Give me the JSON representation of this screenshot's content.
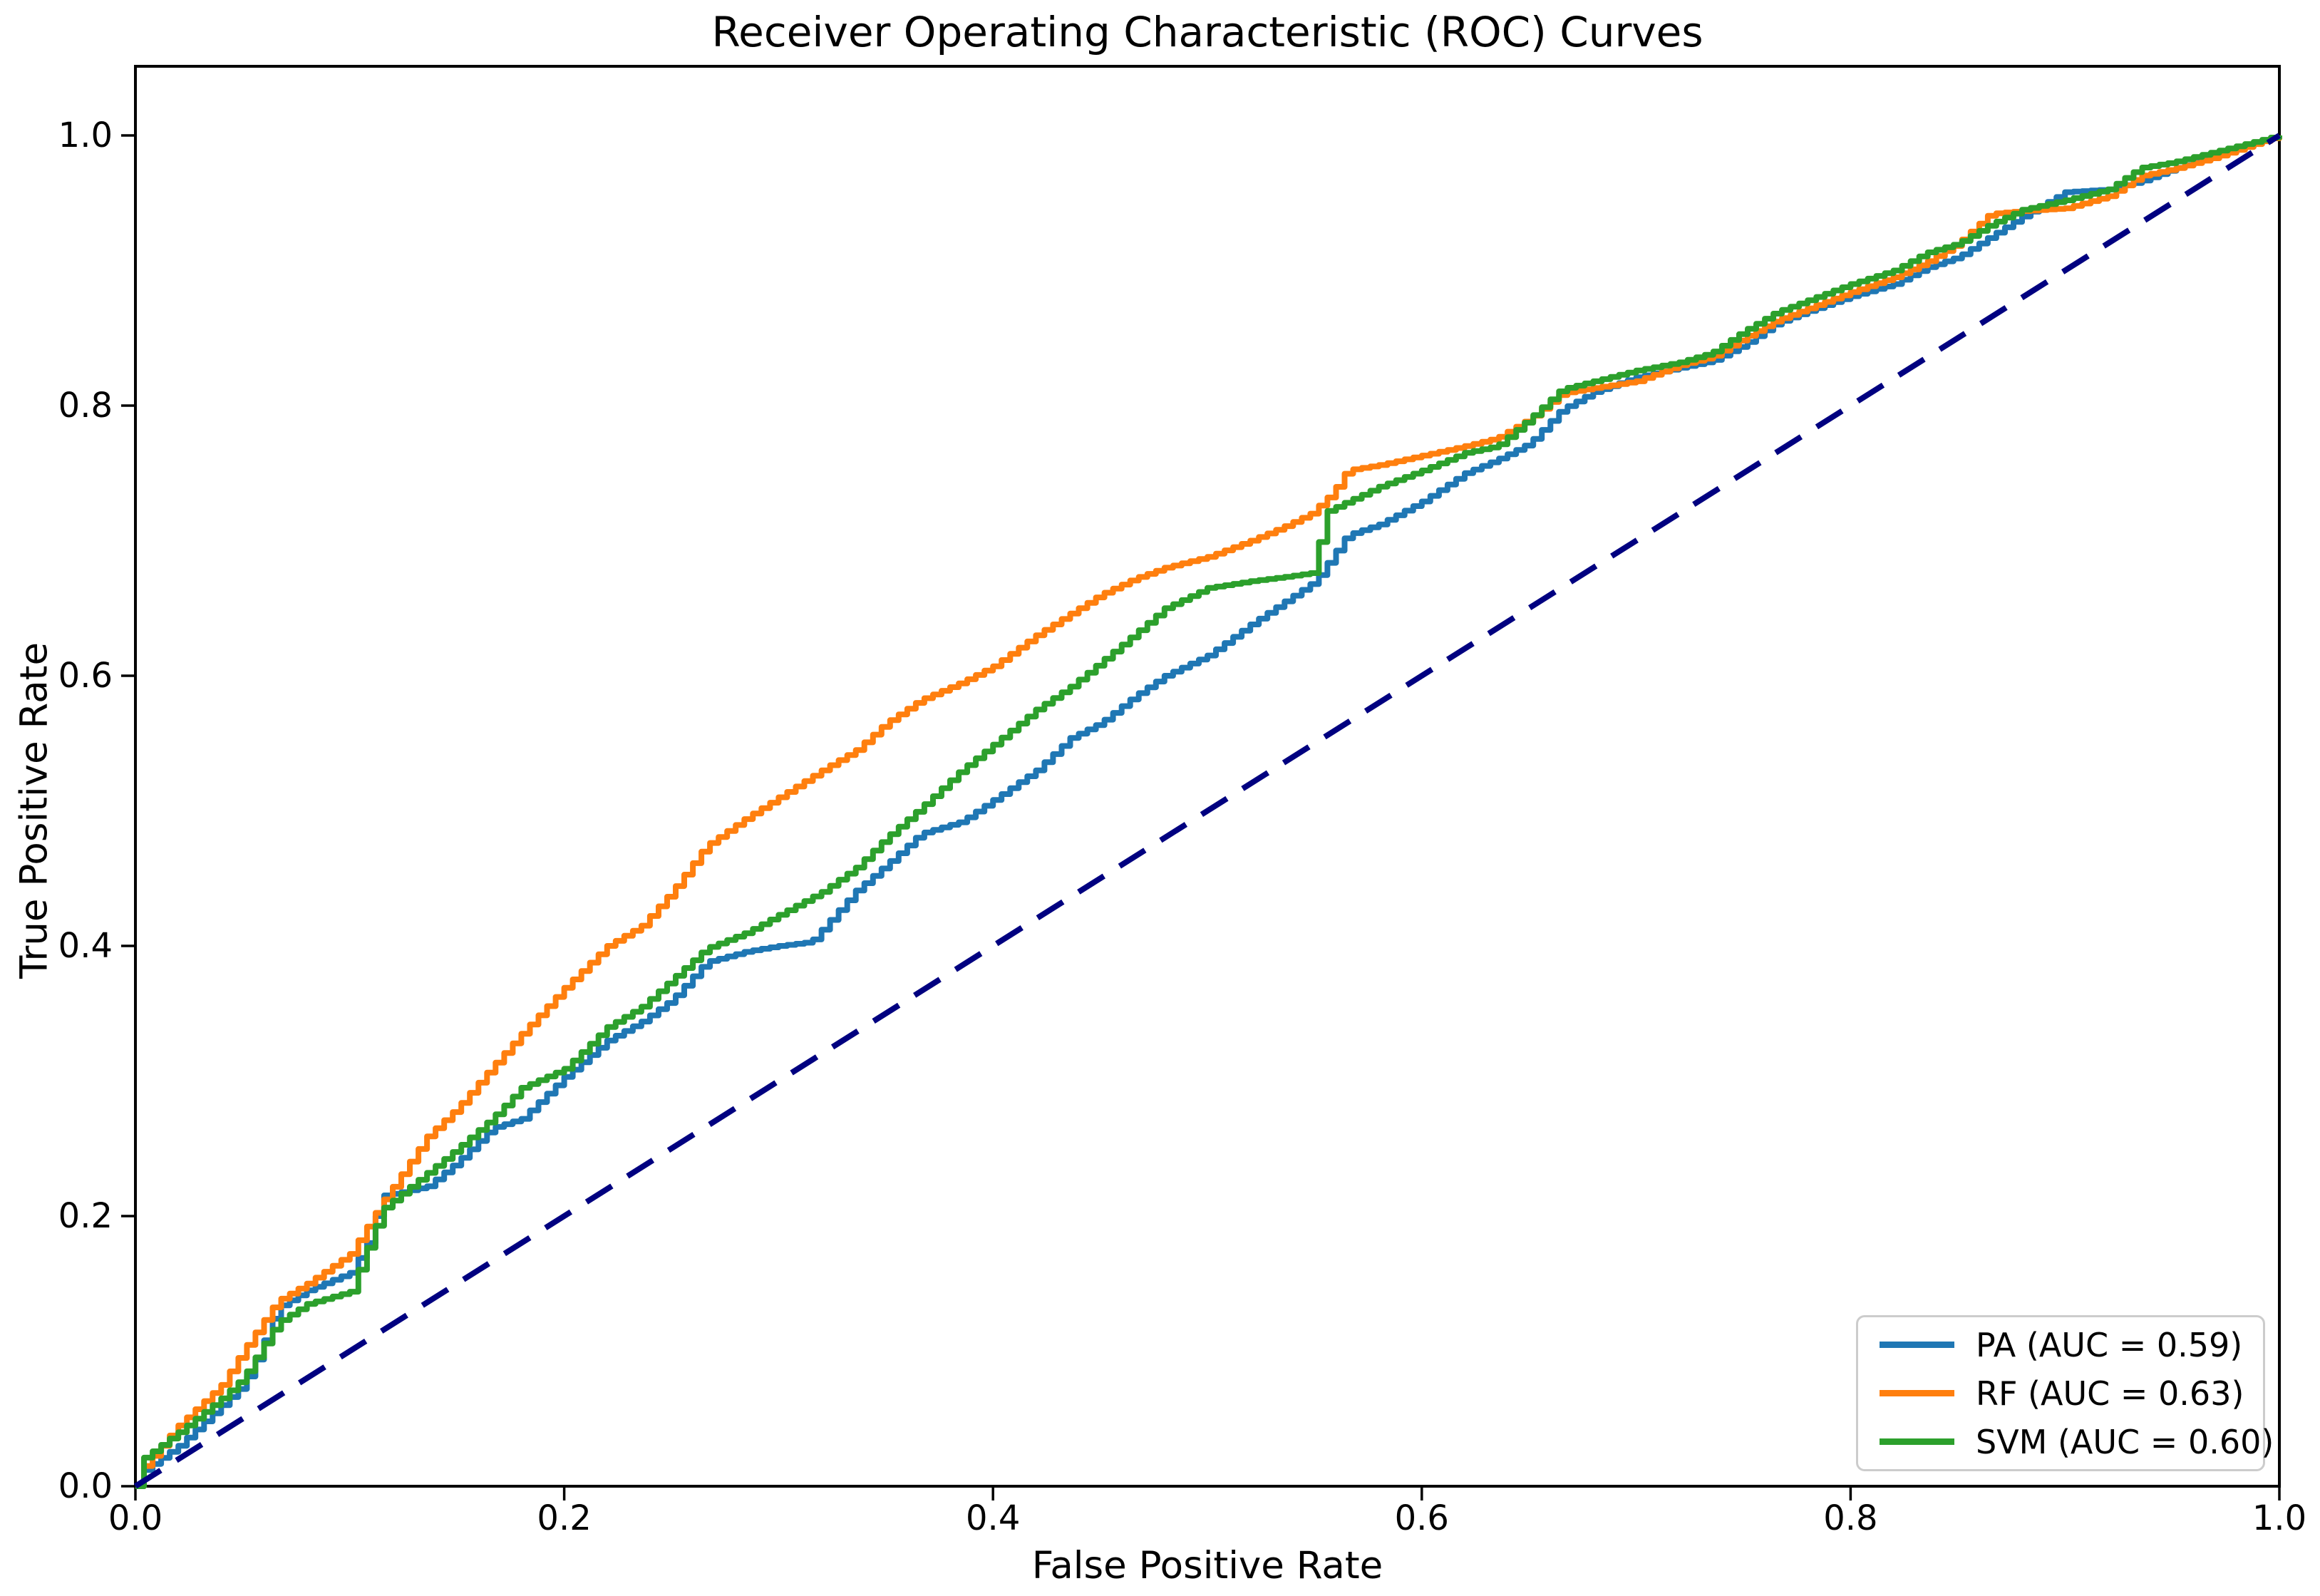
{
  "chart_data": {
    "type": "line",
    "title": "Receiver Operating Characteristic (ROC) Curves",
    "xlabel": "False Positive Rate",
    "ylabel": "True Positive Rate",
    "xlim": [
      0,
      1.0
    ],
    "ylim": [
      0,
      1.05
    ],
    "x_ticks": [
      "0.0",
      "0.2",
      "0.4",
      "0.6",
      "0.8",
      "1.0"
    ],
    "y_ticks": [
      "0.0",
      "0.2",
      "0.4",
      "0.6",
      "0.8",
      "1.0"
    ],
    "grid": false,
    "legend_position": "lower right",
    "series": [
      {
        "name": "PA (AUC = 0.59)",
        "auc": 0.59,
        "color": "#1f77b4",
        "style": "step",
        "legend": true,
        "points": [
          [
            0,
            0
          ],
          [
            0.004,
            0.012
          ],
          [
            0.02,
            0.03
          ],
          [
            0.04,
            0.06
          ],
          [
            0.05,
            0.075
          ],
          [
            0.058,
            0.1
          ],
          [
            0.066,
            0.132
          ],
          [
            0.08,
            0.145
          ],
          [
            0.1,
            0.158
          ],
          [
            0.108,
            0.18
          ],
          [
            0.115,
            0.215
          ],
          [
            0.125,
            0.218
          ],
          [
            0.136,
            0.222
          ],
          [
            0.15,
            0.24
          ],
          [
            0.166,
            0.265
          ],
          [
            0.18,
            0.272
          ],
          [
            0.2,
            0.303
          ],
          [
            0.22,
            0.33
          ],
          [
            0.236,
            0.344
          ],
          [
            0.25,
            0.36
          ],
          [
            0.266,
            0.388
          ],
          [
            0.285,
            0.396
          ],
          [
            0.3,
            0.4
          ],
          [
            0.315,
            0.403
          ],
          [
            0.336,
            0.441
          ],
          [
            0.35,
            0.46
          ],
          [
            0.366,
            0.483
          ],
          [
            0.385,
            0.492
          ],
          [
            0.4,
            0.508
          ],
          [
            0.42,
            0.53
          ],
          [
            0.436,
            0.554
          ],
          [
            0.45,
            0.565
          ],
          [
            0.466,
            0.585
          ],
          [
            0.48,
            0.6
          ],
          [
            0.5,
            0.615
          ],
          [
            0.52,
            0.638
          ],
          [
            0.535,
            0.654
          ],
          [
            0.55,
            0.67
          ],
          [
            0.565,
            0.704
          ],
          [
            0.58,
            0.712
          ],
          [
            0.6,
            0.729
          ],
          [
            0.62,
            0.75
          ],
          [
            0.635,
            0.76
          ],
          [
            0.65,
            0.772
          ],
          [
            0.665,
            0.797
          ],
          [
            0.68,
            0.81
          ],
          [
            0.7,
            0.821
          ],
          [
            0.72,
            0.828
          ],
          [
            0.735,
            0.833
          ],
          [
            0.75,
            0.845
          ],
          [
            0.765,
            0.861
          ],
          [
            0.78,
            0.87
          ],
          [
            0.8,
            0.881
          ],
          [
            0.82,
            0.89
          ],
          [
            0.835,
            0.902
          ],
          [
            0.85,
            0.91
          ],
          [
            0.865,
            0.925
          ],
          [
            0.88,
            0.94
          ],
          [
            0.9,
            0.958
          ],
          [
            0.92,
            0.96
          ],
          [
            0.935,
            0.966
          ],
          [
            0.95,
            0.975
          ],
          [
            0.97,
            0.985
          ],
          [
            1,
            1
          ]
        ]
      },
      {
        "name": "RF (AUC = 0.63)",
        "auc": 0.63,
        "color": "#ff7f0e",
        "style": "step",
        "legend": true,
        "points": [
          [
            0,
            0
          ],
          [
            0.004,
            0.015
          ],
          [
            0.02,
            0.045
          ],
          [
            0.04,
            0.075
          ],
          [
            0.05,
            0.1
          ],
          [
            0.066,
            0.137
          ],
          [
            0.08,
            0.15
          ],
          [
            0.1,
            0.172
          ],
          [
            0.115,
            0.21
          ],
          [
            0.136,
            0.259
          ],
          [
            0.15,
            0.28
          ],
          [
            0.166,
            0.31
          ],
          [
            0.18,
            0.335
          ],
          [
            0.2,
            0.369
          ],
          [
            0.22,
            0.4
          ],
          [
            0.236,
            0.415
          ],
          [
            0.25,
            0.44
          ],
          [
            0.266,
            0.474
          ],
          [
            0.285,
            0.495
          ],
          [
            0.3,
            0.51
          ],
          [
            0.32,
            0.53
          ],
          [
            0.336,
            0.545
          ],
          [
            0.35,
            0.565
          ],
          [
            0.366,
            0.582
          ],
          [
            0.385,
            0.595
          ],
          [
            0.4,
            0.607
          ],
          [
            0.42,
            0.63
          ],
          [
            0.436,
            0.646
          ],
          [
            0.45,
            0.66
          ],
          [
            0.466,
            0.672
          ],
          [
            0.48,
            0.68
          ],
          [
            0.5,
            0.688
          ],
          [
            0.52,
            0.7
          ],
          [
            0.535,
            0.71
          ],
          [
            0.548,
            0.72
          ],
          [
            0.558,
            0.735
          ],
          [
            0.565,
            0.752
          ],
          [
            0.58,
            0.756
          ],
          [
            0.6,
            0.763
          ],
          [
            0.62,
            0.77
          ],
          [
            0.635,
            0.776
          ],
          [
            0.65,
            0.79
          ],
          [
            0.665,
            0.809
          ],
          [
            0.68,
            0.813
          ],
          [
            0.7,
            0.818
          ],
          [
            0.72,
            0.83
          ],
          [
            0.735,
            0.836
          ],
          [
            0.75,
            0.85
          ],
          [
            0.765,
            0.863
          ],
          [
            0.78,
            0.872
          ],
          [
            0.8,
            0.884
          ],
          [
            0.82,
            0.895
          ],
          [
            0.835,
            0.906
          ],
          [
            0.85,
            0.92
          ],
          [
            0.865,
            0.942
          ],
          [
            0.88,
            0.944
          ],
          [
            0.9,
            0.946
          ],
          [
            0.92,
            0.955
          ],
          [
            0.935,
            0.97
          ],
          [
            0.95,
            0.975
          ],
          [
            0.97,
            0.984
          ],
          [
            1,
            1
          ]
        ]
      },
      {
        "name": "SVM (AUC = 0.60)",
        "auc": 0.6,
        "color": "#2ca02c",
        "style": "step",
        "legend": true,
        "points": [
          [
            0,
            0
          ],
          [
            0.003,
            0.02
          ],
          [
            0.02,
            0.04
          ],
          [
            0.04,
            0.065
          ],
          [
            0.05,
            0.08
          ],
          [
            0.066,
            0.121
          ],
          [
            0.08,
            0.135
          ],
          [
            0.1,
            0.144
          ],
          [
            0.115,
            0.205
          ],
          [
            0.136,
            0.232
          ],
          [
            0.15,
            0.25
          ],
          [
            0.166,
            0.272
          ],
          [
            0.18,
            0.295
          ],
          [
            0.2,
            0.309
          ],
          [
            0.22,
            0.34
          ],
          [
            0.236,
            0.355
          ],
          [
            0.25,
            0.375
          ],
          [
            0.266,
            0.398
          ],
          [
            0.285,
            0.41
          ],
          [
            0.3,
            0.423
          ],
          [
            0.32,
            0.44
          ],
          [
            0.336,
            0.458
          ],
          [
            0.35,
            0.48
          ],
          [
            0.366,
            0.502
          ],
          [
            0.385,
            0.53
          ],
          [
            0.4,
            0.549
          ],
          [
            0.42,
            0.575
          ],
          [
            0.436,
            0.592
          ],
          [
            0.45,
            0.61
          ],
          [
            0.466,
            0.631
          ],
          [
            0.48,
            0.65
          ],
          [
            0.5,
            0.665
          ],
          [
            0.52,
            0.67
          ],
          [
            0.535,
            0.673
          ],
          [
            0.548,
            0.676
          ],
          [
            0.556,
            0.722
          ],
          [
            0.58,
            0.74
          ],
          [
            0.6,
            0.752
          ],
          [
            0.62,
            0.765
          ],
          [
            0.635,
            0.77
          ],
          [
            0.65,
            0.79
          ],
          [
            0.665,
            0.812
          ],
          [
            0.68,
            0.818
          ],
          [
            0.7,
            0.826
          ],
          [
            0.72,
            0.832
          ],
          [
            0.735,
            0.839
          ],
          [
            0.75,
            0.855
          ],
          [
            0.765,
            0.869
          ],
          [
            0.78,
            0.878
          ],
          [
            0.8,
            0.89
          ],
          [
            0.82,
            0.9
          ],
          [
            0.835,
            0.913
          ],
          [
            0.85,
            0.92
          ],
          [
            0.865,
            0.934
          ],
          [
            0.88,
            0.945
          ],
          [
            0.9,
            0.952
          ],
          [
            0.92,
            0.96
          ],
          [
            0.935,
            0.976
          ],
          [
            0.95,
            0.98
          ],
          [
            0.97,
            0.988
          ],
          [
            1,
            1
          ]
        ]
      },
      {
        "name": "chance-diagonal",
        "color": "#000080",
        "style": "dashed",
        "legend": false,
        "points": [
          [
            0,
            0
          ],
          [
            1,
            1
          ]
        ]
      }
    ]
  },
  "colors": {
    "axis": "#000000",
    "background": "#ffffff",
    "legend_border": "#cccccc"
  }
}
